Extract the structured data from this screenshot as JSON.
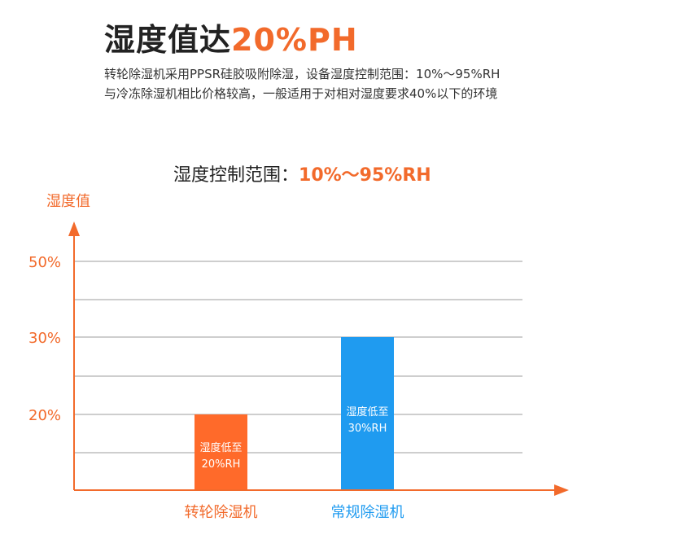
{
  "header": {
    "title_main": "湿度值达",
    "title_accent": "20%PH",
    "desc_lines": [
      "转轮除湿机采用PPSR硅胶吸附除湿，设备湿度控制范围：10%～95%RH",
      "与冷冻除湿机相比价格较高，一般适用于对相对湿度要求40%以下的环境"
    ]
  },
  "range": {
    "label": "湿度控制范围：",
    "value": "10%～95%RH"
  },
  "colors": {
    "accent": "#f26a2b",
    "bar_orange": "#ff6a2a",
    "bar_blue": "#1f9bf0",
    "grid": "#bdbdbd",
    "dark_text": "#222222"
  },
  "chart_data": {
    "type": "bar",
    "ylabel": "湿度值",
    "yticks": [
      "50%",
      "30%",
      "20%"
    ],
    "categories": [
      "转轮除湿机",
      "常规除湿机"
    ],
    "values": [
      20,
      30
    ],
    "bar_labels": [
      [
        "湿度低至",
        "20%RH"
      ],
      [
        "湿度低至",
        "30%RH"
      ]
    ],
    "grid": true
  }
}
